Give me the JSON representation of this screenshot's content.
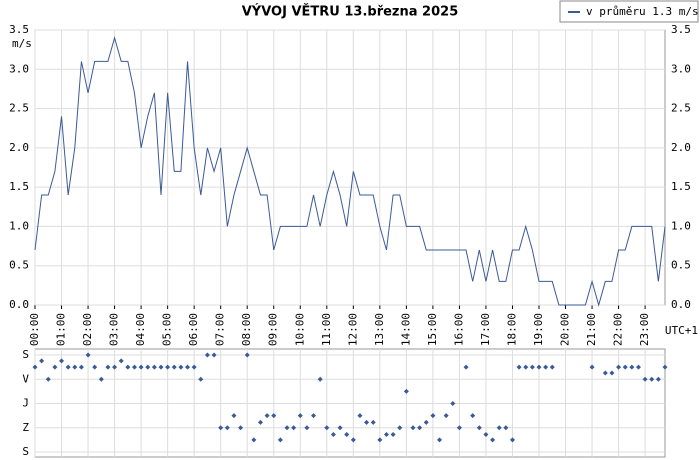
{
  "chart_data": [
    {
      "type": "line",
      "title": "VÝVOJ VĚTRU  13.března 2025",
      "y_label": "m/s",
      "x_label": "UTC+1",
      "legend": "top-right",
      "grid": true,
      "series": [
        {
          "name": "v průměru 1.3 m/s",
          "color": "#3a5a98",
          "values": [
            0.7,
            1.4,
            1.4,
            1.7,
            2.4,
            1.4,
            2.0,
            3.1,
            2.7,
            3.1,
            3.1,
            3.1,
            3.4,
            3.1,
            3.1,
            2.7,
            2.0,
            2.4,
            2.7,
            1.4,
            2.7,
            1.7,
            1.7,
            3.1,
            2.0,
            1.4,
            2.0,
            1.7,
            2.0,
            1.0,
            1.4,
            1.7,
            2.0,
            1.7,
            1.4,
            1.4,
            0.7,
            1.0,
            1.0,
            1.0,
            1.0,
            1.0,
            1.4,
            1.0,
            1.4,
            1.7,
            1.4,
            1.0,
            1.7,
            1.4,
            1.4,
            1.4,
            1.0,
            0.7,
            1.4,
            1.4,
            1.0,
            1.0,
            1.0,
            0.7,
            0.7,
            0.7,
            0.7,
            0.7,
            0.7,
            0.7,
            0.3,
            0.7,
            0.3,
            0.7,
            0.3,
            0.3,
            0.7,
            0.7,
            1.0,
            0.7,
            0.3,
            0.3,
            0.3,
            0.0,
            0.0,
            0.0,
            0.0,
            0.0,
            0.3,
            0.0,
            0.3,
            0.3,
            0.7,
            0.7,
            1.0,
            1.0,
            1.0,
            1.0,
            0.3,
            1.0
          ]
        }
      ],
      "x": [
        0,
        0.25,
        0.5,
        0.75,
        1,
        1.25,
        1.5,
        1.75,
        2,
        2.25,
        2.5,
        2.75,
        3,
        3.25,
        3.5,
        3.75,
        4,
        4.25,
        4.5,
        4.75,
        5,
        5.25,
        5.5,
        5.75,
        6,
        6.25,
        6.5,
        6.75,
        7,
        7.25,
        7.5,
        7.75,
        8,
        8.25,
        8.5,
        8.75,
        9,
        9.25,
        9.5,
        9.75,
        10,
        10.25,
        10.5,
        10.75,
        11,
        11.25,
        11.5,
        11.75,
        12,
        12.25,
        12.5,
        12.75,
        13,
        13.25,
        13.5,
        13.75,
        14,
        14.25,
        14.5,
        14.75,
        15,
        15.25,
        15.5,
        15.75,
        16,
        16.25,
        16.5,
        16.75,
        17,
        17.25,
        17.5,
        17.75,
        18,
        18.25,
        18.5,
        18.75,
        19,
        19.25,
        19.5,
        19.75,
        20,
        20.25,
        20.5,
        20.75,
        21,
        21.25,
        21.5,
        21.75,
        22,
        22.25,
        22.5,
        22.75,
        23,
        23.25,
        23.5,
        23.75
      ],
      "xlim": [
        0,
        23.75
      ],
      "xticks": [
        {
          "value": 0,
          "label": "00:00"
        },
        {
          "value": 1,
          "label": "01:00"
        },
        {
          "value": 2,
          "label": "02:00"
        },
        {
          "value": 3,
          "label": "03:00"
        },
        {
          "value": 4,
          "label": "04:00"
        },
        {
          "value": 5,
          "label": "05:00"
        },
        {
          "value": 6,
          "label": "06:00"
        },
        {
          "value": 7,
          "label": "07:00"
        },
        {
          "value": 8,
          "label": "08:00"
        },
        {
          "value": 9,
          "label": "09:00"
        },
        {
          "value": 10,
          "label": "10:00"
        },
        {
          "value": 11,
          "label": "11:00"
        },
        {
          "value": 12,
          "label": "12:00"
        },
        {
          "value": 13,
          "label": "13:00"
        },
        {
          "value": 14,
          "label": "14:00"
        },
        {
          "value": 15,
          "label": "15:00"
        },
        {
          "value": 16,
          "label": "16:00"
        },
        {
          "value": 17,
          "label": "17:00"
        },
        {
          "value": 18,
          "label": "18:00"
        },
        {
          "value": 19,
          "label": "19:00"
        },
        {
          "value": 20,
          "label": "20:00"
        },
        {
          "value": 21,
          "label": "21:00"
        },
        {
          "value": 22,
          "label": "22:00"
        },
        {
          "value": 23,
          "label": "23:00"
        }
      ],
      "ylim": [
        0,
        3.5
      ],
      "yticks": [
        {
          "value": 0,
          "label": "0.0"
        },
        0.5,
        {
          "value": 1,
          "label": "1.0"
        },
        1.5,
        {
          "value": 2,
          "label": "2.0"
        },
        2.5,
        {
          "value": 3,
          "label": "3.0"
        },
        3.5
      ]
    },
    {
      "type": "scatter",
      "color": "#3a5a98",
      "grid": true,
      "x": [
        0,
        0.25,
        0.5,
        0.75,
        1,
        1.25,
        1.5,
        1.75,
        2,
        2.25,
        2.5,
        2.75,
        3,
        3.25,
        3.5,
        3.75,
        4,
        4.25,
        4.5,
        4.75,
        5,
        5.25,
        5.5,
        5.75,
        6,
        6.25,
        6.5,
        6.75,
        7,
        7.25,
        7.5,
        7.75,
        8,
        8.25,
        8.5,
        8.75,
        9,
        9.25,
        9.5,
        9.75,
        10,
        10.25,
        10.5,
        10.75,
        11,
        11.25,
        11.5,
        11.75,
        12,
        12.25,
        12.5,
        12.75,
        13,
        13.25,
        13.5,
        13.75,
        14,
        14.25,
        14.5,
        14.75,
        15,
        15.25,
        15.5,
        15.75,
        16,
        16.25,
        16.5,
        16.75,
        17,
        17.25,
        17.5,
        17.75,
        18,
        18.25,
        18.5,
        18.75,
        19,
        19.25,
        19.5,
        19.75,
        20,
        20.25,
        20.5,
        20.75,
        21,
        21.25,
        21.5,
        21.75,
        22,
        22.25,
        22.5,
        22.75,
        23,
        23.25,
        23.5,
        23.75
      ],
      "values": [
        45,
        22,
        90,
        45,
        22,
        45,
        45,
        45,
        0,
        45,
        90,
        45,
        45,
        22,
        45,
        45,
        45,
        45,
        45,
        45,
        45,
        45,
        45,
        45,
        45,
        90,
        0,
        0,
        270,
        270,
        225,
        270,
        0,
        315,
        250,
        225,
        225,
        315,
        270,
        270,
        225,
        270,
        225,
        90,
        270,
        295,
        270,
        295,
        315,
        225,
        250,
        250,
        315,
        295,
        295,
        270,
        135,
        270,
        270,
        250,
        225,
        315,
        225,
        180,
        270,
        45,
        225,
        270,
        295,
        315,
        270,
        270,
        315,
        45,
        45,
        45,
        45,
        45,
        45,
        null,
        null,
        null,
        null,
        null,
        45,
        null,
        67,
        67,
        45,
        45,
        45,
        45,
        90,
        90,
        90,
        45
      ],
      "xlim": [
        0,
        23.75
      ],
      "ylim": [
        0,
        360
      ],
      "yticks": [
        {
          "value": 0,
          "label": "S"
        },
        {
          "value": 90,
          "label": "V"
        },
        {
          "value": 180,
          "label": "J"
        },
        {
          "value": 270,
          "label": "Z"
        },
        {
          "value": 360,
          "label": "S"
        }
      ]
    }
  ]
}
